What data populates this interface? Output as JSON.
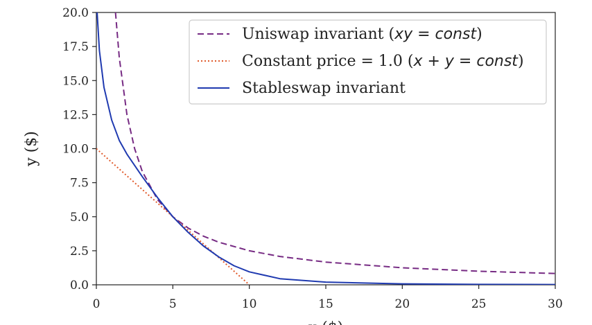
{
  "chart_data": {
    "type": "line",
    "title": "",
    "xlabel": "x ($)",
    "ylabel": "y ($)",
    "xlim": [
      0,
      30
    ],
    "ylim": [
      0,
      20
    ],
    "xticks": [
      "0",
      "5",
      "10",
      "15",
      "20",
      "25",
      "30"
    ],
    "yticks": [
      "0.0",
      "2.5",
      "5.0",
      "7.5",
      "10.0",
      "12.5",
      "15.0",
      "17.5",
      "20.0"
    ],
    "grid": false,
    "legend_position": "top-right",
    "legend_entries": [
      {
        "label": "Uniswap invariant (xy = const)",
        "plain": "Uniswap invariant (",
        "math": "xy = const",
        "tail": ")"
      },
      {
        "label": "Constant price = 1.0 (x + y = const)",
        "plain": "Constant price = 1.0 (",
        "math": "x + y = const",
        "tail": ")"
      },
      {
        "label": "Stableswap invariant",
        "plain": "Stableswap invariant",
        "math": "",
        "tail": ""
      }
    ],
    "series": [
      {
        "color": "#762a83",
        "dash": "dashed",
        "x": [
          1.25,
          1.5,
          2,
          2.5,
          3,
          4,
          5,
          6,
          7,
          8,
          10,
          12,
          15,
          20,
          25,
          30
        ],
        "y": [
          20.0,
          16.67,
          12.5,
          10.0,
          8.33,
          6.25,
          5.0,
          4.17,
          3.57,
          3.13,
          2.5,
          2.08,
          1.67,
          1.25,
          1.0,
          0.83
        ]
      },
      {
        "color": "#e05a2b",
        "dash": "dotted",
        "x": [
          0,
          10
        ],
        "y": [
          10,
          0
        ]
      },
      {
        "color": "#1f3ab0",
        "dash": "solid",
        "x": [
          0.05,
          0.2,
          0.5,
          1,
          1.5,
          2,
          3,
          4,
          5,
          6,
          7,
          8,
          9,
          10,
          12,
          15,
          20,
          25,
          30
        ],
        "y": [
          20.0,
          17.2,
          14.5,
          12.1,
          10.6,
          9.6,
          7.95,
          6.4,
          5.0,
          3.85,
          2.85,
          2.05,
          1.4,
          0.95,
          0.45,
          0.2,
          0.07,
          0.03,
          0.02
        ]
      }
    ]
  }
}
